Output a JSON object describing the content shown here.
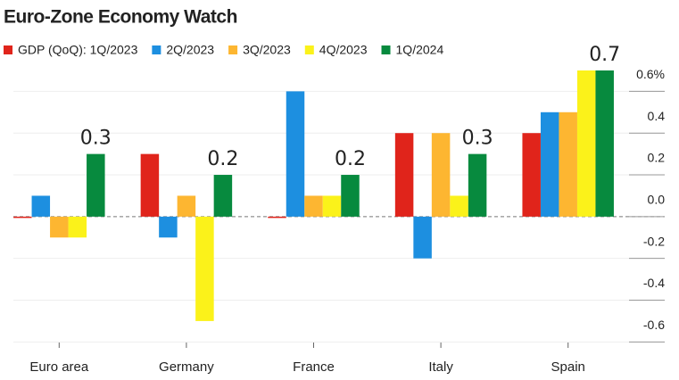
{
  "chart_data": {
    "type": "bar",
    "title": "Euro-Zone Economy Watch",
    "categories": [
      "Euro area",
      "Germany",
      "France",
      "Italy",
      "Spain"
    ],
    "series": [
      {
        "name": "GDP (QoQ): 1Q/2023",
        "color": "#e0241b",
        "values": [
          0.0,
          0.3,
          0.0,
          0.4,
          0.4
        ]
      },
      {
        "name": "2Q/2023",
        "color": "#1d8fe0",
        "values": [
          0.1,
          -0.1,
          0.6,
          -0.2,
          0.5
        ]
      },
      {
        "name": "3Q/2023",
        "color": "#fdb631",
        "values": [
          -0.1,
          0.1,
          0.1,
          0.4,
          0.5
        ]
      },
      {
        "name": "4Q/2023",
        "color": "#fbf21a",
        "values": [
          -0.1,
          -0.5,
          0.1,
          0.1,
          0.7
        ]
      },
      {
        "name": "1Q/2024",
        "color": "#078a3e",
        "values": [
          0.3,
          0.2,
          0.2,
          0.3,
          0.7
        ],
        "show_labels": true
      }
    ],
    "ylim": [
      -0.62,
      0.72
    ],
    "yticks": [
      {
        "value": 0.6,
        "label": "0.6%"
      },
      0.4,
      0.2,
      {
        "value": 0.0,
        "label": "0.0"
      },
      -0.2,
      -0.4,
      -0.6
    ],
    "grid": true
  }
}
